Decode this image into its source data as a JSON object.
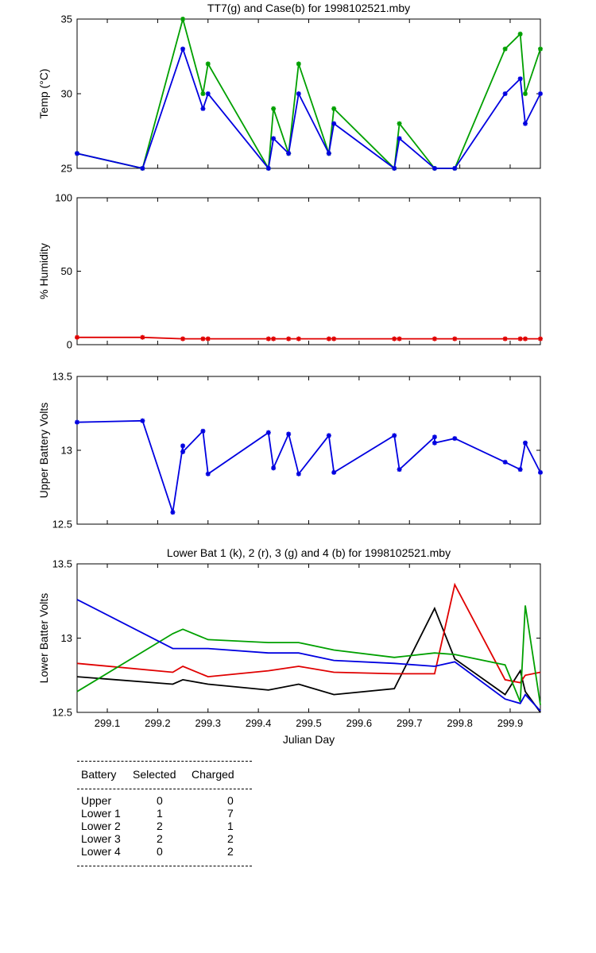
{
  "chart_data": [
    {
      "type": "line",
      "title": "TT7(g) and Case(b) for 1998102521.mby",
      "xlabel": "",
      "ylabel": "Temp  (°C)",
      "xlim": [
        299.04,
        299.96
      ],
      "ylim": [
        25,
        35
      ],
      "yticks": [
        "25",
        "30",
        "35"
      ],
      "markers": true,
      "series": [
        {
          "name": "TT7",
          "color": "#00a000",
          "x": [
            299.04,
            299.17,
            299.25,
            299.29,
            299.3,
            299.42,
            299.43,
            299.46,
            299.48,
            299.54,
            299.55,
            299.67,
            299.68,
            299.75,
            299.79,
            299.89,
            299.92,
            299.93,
            299.96
          ],
          "y": [
            26,
            25,
            35,
            30,
            32,
            25,
            29,
            26,
            32,
            26,
            29,
            25,
            28,
            25,
            25,
            33,
            34,
            30,
            33
          ]
        },
        {
          "name": "Case",
          "color": "#0000e0",
          "x": [
            299.04,
            299.17,
            299.25,
            299.29,
            299.3,
            299.42,
            299.43,
            299.46,
            299.48,
            299.54,
            299.55,
            299.67,
            299.68,
            299.75,
            299.79,
            299.89,
            299.92,
            299.93,
            299.96
          ],
          "y": [
            26,
            25,
            33,
            29,
            30,
            25,
            27,
            26,
            30,
            26,
            28,
            25,
            27,
            25,
            25,
            30,
            31,
            28,
            30
          ]
        }
      ]
    },
    {
      "type": "line",
      "title": "",
      "xlabel": "",
      "ylabel": "% Humidity",
      "xlim": [
        299.04,
        299.96
      ],
      "ylim": [
        0,
        100
      ],
      "yticks": [
        "0",
        "50",
        "100"
      ],
      "markers": true,
      "series": [
        {
          "name": "",
          "color": "#e00000",
          "x": [
            299.04,
            299.17,
            299.25,
            299.29,
            299.3,
            299.42,
            299.43,
            299.46,
            299.48,
            299.54,
            299.55,
            299.67,
            299.68,
            299.75,
            299.79,
            299.89,
            299.92,
            299.93,
            299.96
          ],
          "y": [
            5,
            5,
            4,
            4,
            4,
            4,
            4,
            4,
            4,
            4,
            4,
            4,
            4,
            4,
            4,
            4,
            4,
            4,
            4
          ]
        }
      ]
    },
    {
      "type": "line",
      "title": "",
      "xlabel": "",
      "ylabel": "Upper Battery Volts",
      "xlim": [
        299.04,
        299.96
      ],
      "ylim": [
        12.5,
        13.5
      ],
      "yticks": [
        "12.5",
        "13",
        "13.5"
      ],
      "markers": true,
      "series": [
        {
          "name": "",
          "color": "#0000e0",
          "x": [
            299.04,
            299.17,
            299.23,
            299.25,
            299.25,
            299.29,
            299.3,
            299.42,
            299.43,
            299.46,
            299.48,
            299.54,
            299.55,
            299.67,
            299.68,
            299.75,
            299.75,
            299.79,
            299.89,
            299.92,
            299.93,
            299.96
          ],
          "y": [
            13.19,
            13.2,
            12.58,
            13.03,
            12.99,
            13.13,
            12.84,
            13.12,
            12.88,
            13.11,
            12.84,
            13.1,
            12.85,
            13.1,
            12.87,
            13.09,
            13.05,
            13.08,
            12.92,
            12.87,
            13.05,
            12.85
          ]
        }
      ]
    },
    {
      "type": "line",
      "title": "Lower Bat 1 (k), 2 (r), 3 (g) and 4 (b) for 1998102521.mby",
      "xlabel": "Julian Day",
      "ylabel": "Lower Batter Volts",
      "xlim": [
        299.04,
        299.96
      ],
      "ylim": [
        12.5,
        13.5
      ],
      "yticks": [
        "12.5",
        "13",
        "13.5"
      ],
      "xticks": [
        "299.1",
        "299.2",
        "299.3",
        "299.4",
        "299.5",
        "299.6",
        "299.7",
        "299.8",
        "299.9"
      ],
      "markers": false,
      "series": [
        {
          "name": "1",
          "color": "#000000",
          "x": [
            299.04,
            299.23,
            299.25,
            299.3,
            299.42,
            299.48,
            299.55,
            299.67,
            299.75,
            299.79,
            299.89,
            299.92,
            299.93,
            299.96
          ],
          "y": [
            12.74,
            12.69,
            12.72,
            12.69,
            12.65,
            12.69,
            12.62,
            12.66,
            13.2,
            12.86,
            12.62,
            12.78,
            12.64,
            12.5
          ]
        },
        {
          "name": "2",
          "color": "#e00000",
          "x": [
            299.04,
            299.23,
            299.25,
            299.3,
            299.42,
            299.48,
            299.55,
            299.67,
            299.75,
            299.79,
            299.89,
            299.92,
            299.93,
            299.96
          ],
          "y": [
            12.83,
            12.77,
            12.81,
            12.74,
            12.78,
            12.81,
            12.77,
            12.76,
            12.76,
            13.36,
            12.72,
            12.7,
            12.75,
            12.77
          ]
        },
        {
          "name": "3",
          "color": "#00a000",
          "x": [
            299.04,
            299.23,
            299.25,
            299.3,
            299.42,
            299.48,
            299.55,
            299.67,
            299.75,
            299.79,
            299.89,
            299.92,
            299.93,
            299.96
          ],
          "y": [
            12.64,
            13.03,
            13.06,
            12.99,
            12.97,
            12.97,
            12.92,
            12.87,
            12.9,
            12.89,
            12.82,
            12.57,
            13.22,
            12.55
          ]
        },
        {
          "name": "4",
          "color": "#0000e0",
          "x": [
            299.04,
            299.23,
            299.25,
            299.3,
            299.42,
            299.48,
            299.55,
            299.67,
            299.75,
            299.79,
            299.89,
            299.92,
            299.93,
            299.96
          ],
          "y": [
            13.26,
            12.93,
            12.93,
            12.93,
            12.9,
            12.9,
            12.85,
            12.83,
            12.81,
            12.84,
            12.59,
            12.56,
            12.62,
            12.51
          ]
        }
      ]
    }
  ],
  "summary": {
    "headers": {
      "battery": "Battery",
      "selected": "Selected",
      "charged": "Charged"
    },
    "rows": [
      {
        "battery": "Upper",
        "selected": "0",
        "charged": "0"
      },
      {
        "battery": "Lower 1",
        "selected": "1",
        "charged": "7"
      },
      {
        "battery": "Lower 2",
        "selected": "2",
        "charged": "1"
      },
      {
        "battery": "Lower 3",
        "selected": "2",
        "charged": "2"
      },
      {
        "battery": "Lower 4",
        "selected": "0",
        "charged": "2"
      }
    ]
  }
}
